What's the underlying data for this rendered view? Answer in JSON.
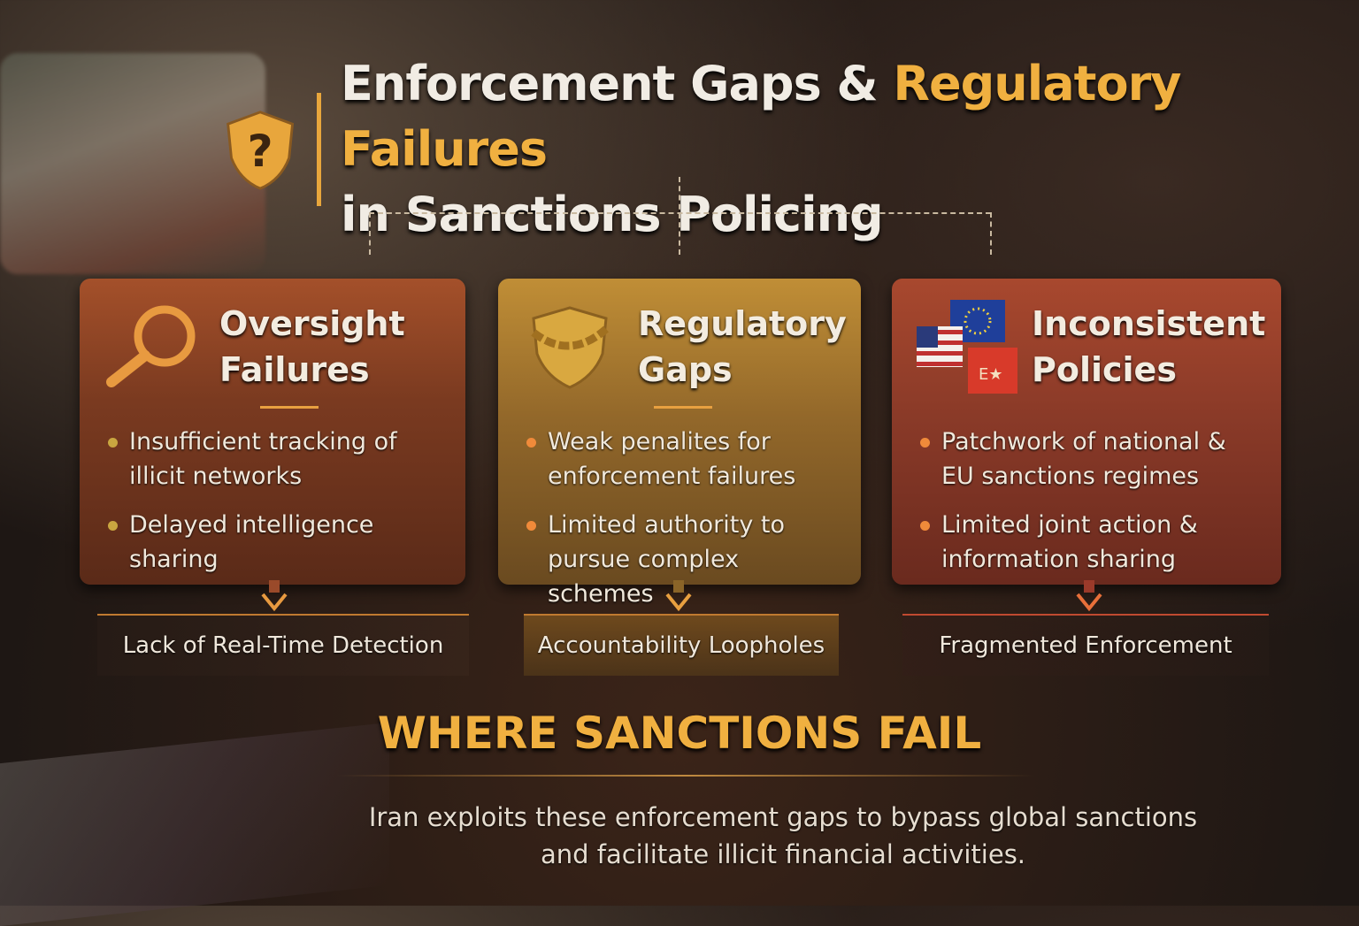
{
  "header": {
    "title_part1": "Enforcement Gaps & ",
    "title_accent": "Regulatory Failures",
    "title_line2": "in Sanctions Policing",
    "icon": "shield-question-icon"
  },
  "cards": [
    {
      "title_l1": "Oversight",
      "title_l2": "Failures",
      "icon": "magnifier-icon",
      "bullets": [
        "Insufficient tracking of illicit networks",
        "Delayed intelligence sharing"
      ],
      "outcome": "Lack of Real-Time Detection",
      "dot_color": "#c9a640"
    },
    {
      "title_l1": "Regulatory",
      "title_l2": "Gaps",
      "icon": "chained-shield-icon",
      "bullets": [
        "Weak penalites for enforcement failures",
        "Limited authority to pursue complex schemes"
      ],
      "outcome": "Accountability Loopholes",
      "dot_color": "#f08a3a"
    },
    {
      "title_l1": "Inconsistent",
      "title_l2": "Policies",
      "icon": "flags-icon",
      "bullets": [
        "Patchwork of national & EU sanctions regimes",
        "Limited joint action & information sharing"
      ],
      "outcome": "Fragmented Enforcement",
      "dot_color": "#f08a3a"
    }
  ],
  "footer": {
    "heading": "WHERE SANCTIONS FAIL",
    "text_l1": "Iran exploits these enforcement gaps to bypass global sanctions",
    "text_l2": "and facilitate illicit financial activities."
  },
  "colors": {
    "accent": "#f0b040",
    "card1": "#a4502a",
    "card2": "#c08e36",
    "card3": "#a8482e"
  }
}
